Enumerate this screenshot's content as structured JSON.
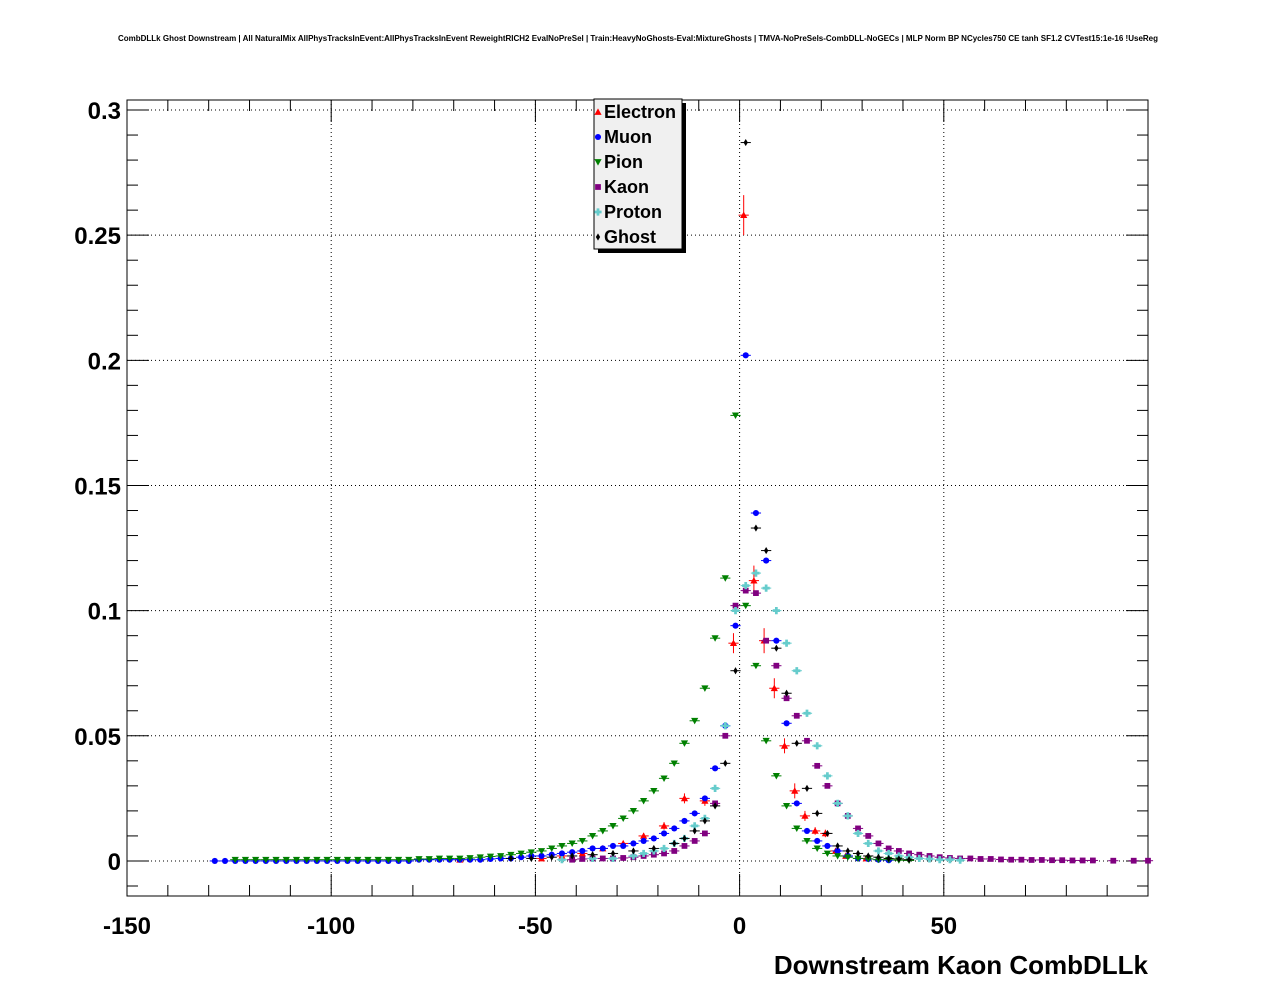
{
  "chart_data": {
    "type": "scatter",
    "title": "CombDLLk Ghost Downstream | All NaturalMix AllPhysTracksInEvent:AllPhysTracksInEvent ReweightRICH2 EvalNoPreSel | Train:HeavyNoGhosts-Eval:MixtureGhosts | TMVA-NoPreSels-CombDLL-NoGECs | MLP Norm BP NCycles750 CE tanh SF1.2 CVTest15:1e-16 !UseReg",
    "xlabel": "Downstream Kaon CombDLLk",
    "ylabel": "",
    "xlim": [
      -150,
      100
    ],
    "ylim": [
      -0.014,
      0.304
    ],
    "xticks": [
      -150,
      -100,
      -50,
      0,
      50
    ],
    "yticks": [
      0,
      0.05,
      0.1,
      0.15,
      0.2,
      0.25,
      0.3
    ],
    "xtick_labels": [
      "-150",
      "-100",
      "-50",
      "0",
      "50"
    ],
    "ytick_labels": [
      "0",
      "0.05",
      "0.1",
      "0.15",
      "0.2",
      "0.25",
      "0.3"
    ],
    "grid": true,
    "legend_position": "top-center",
    "series": [
      {
        "name": "Electron",
        "color": "#ff0000",
        "marker": "triangle-up",
        "x": [
          -68.5,
          -48.5,
          -43.5,
          -38.5,
          -33.5,
          -28.5,
          -23.5,
          -18.5,
          -13.5,
          -8.5,
          -1.5,
          1.0,
          3.5,
          6.0,
          8.5,
          11.0,
          13.5,
          16.0,
          18.5,
          21.0,
          23.5,
          26.0,
          31.0
        ],
        "y": [
          0.0005,
          0.001,
          0.002,
          0.003,
          0.005,
          0.007,
          0.01,
          0.014,
          0.025,
          0.024,
          0.087,
          0.258,
          0.112,
          0.088,
          0.069,
          0.046,
          0.028,
          0.018,
          0.012,
          0.011,
          0.004,
          0.002,
          0.001
        ],
        "yerr": [
          0.0005,
          0.0005,
          0.0005,
          0.0008,
          0.001,
          0.001,
          0.0012,
          0.0015,
          0.002,
          0.002,
          0.004,
          0.008,
          0.006,
          0.005,
          0.004,
          0.003,
          0.003,
          0.002,
          0.0015,
          0.0015,
          0.001,
          0.0008,
          0.0005
        ]
      },
      {
        "name": "Muon",
        "color": "#0000ff",
        "marker": "circle",
        "x": [
          -128.5,
          -126,
          -123.5,
          -121,
          -118.5,
          -116,
          -113.5,
          -111,
          -108.5,
          -106,
          -103.5,
          -101,
          -98.5,
          -96,
          -93.5,
          -91,
          -88.5,
          -86,
          -83.5,
          -81,
          -78.5,
          -76,
          -73.5,
          -71,
          -68.5,
          -66,
          -63.5,
          -61,
          -58.5,
          -56,
          -53.5,
          -51,
          -48.5,
          -46,
          -43.5,
          -41,
          -38.5,
          -36,
          -33.5,
          -31,
          -28.5,
          -26,
          -23.5,
          -21,
          -18.5,
          -16,
          -13.5,
          -11,
          -8.5,
          -6,
          -3.5,
          -1,
          1.5,
          4,
          6.5,
          9,
          11.5,
          14,
          16.5,
          19,
          21.5,
          24,
          26.5,
          29,
          31.5,
          34,
          36.5
        ],
        "y": [
          0,
          0,
          0,
          0,
          0,
          0,
          0,
          0,
          0,
          0,
          0,
          0,
          0,
          0,
          0,
          0,
          0,
          0,
          0,
          0,
          0.0005,
          0.0005,
          0.0005,
          0.0005,
          0.0005,
          0.0005,
          0.0005,
          0.0008,
          0.001,
          0.001,
          0.0015,
          0.002,
          0.002,
          0.0025,
          0.003,
          0.0035,
          0.004,
          0.005,
          0.005,
          0.006,
          0.006,
          0.007,
          0.008,
          0.009,
          0.011,
          0.013,
          0.016,
          0.019,
          0.025,
          0.037,
          0.054,
          0.094,
          0.202,
          0.139,
          0.12,
          0.088,
          0.055,
          0.023,
          0.012,
          0.008,
          0.006,
          0.004,
          0.002,
          0.001,
          0.0008,
          0.0005,
          0.0003
        ],
        "yerr": []
      },
      {
        "name": "Pion",
        "color": "#008000",
        "marker": "triangle-down",
        "x": [
          -123.5,
          -121,
          -118.5,
          -116,
          -113.5,
          -111,
          -108.5,
          -106,
          -103.5,
          -101,
          -98.5,
          -96,
          -93.5,
          -91,
          -88.5,
          -86,
          -83.5,
          -81,
          -78.5,
          -76,
          -73.5,
          -71,
          -68.5,
          -66,
          -63.5,
          -61,
          -58.5,
          -56,
          -53.5,
          -51,
          -48.5,
          -46,
          -43.5,
          -41,
          -38.5,
          -36,
          -33.5,
          -31,
          -28.5,
          -26,
          -23.5,
          -21,
          -18.5,
          -16,
          -13.5,
          -11,
          -8.5,
          -6,
          -3.5,
          -1,
          1.5,
          4,
          6.5,
          9,
          11.5,
          14,
          16.5,
          19,
          21.5,
          24,
          26.5,
          29,
          31.5,
          34,
          36.5,
          39,
          41.5
        ],
        "y": [
          0.0005,
          0.0005,
          0.0005,
          0.0005,
          0.0005,
          0.0005,
          0.0005,
          0.0005,
          0.0005,
          0.0005,
          0.0005,
          0.0005,
          0.0005,
          0.0005,
          0.0005,
          0.0005,
          0.0005,
          0.0005,
          0.0008,
          0.0008,
          0.001,
          0.001,
          0.001,
          0.0012,
          0.0015,
          0.0018,
          0.002,
          0.0025,
          0.003,
          0.0035,
          0.004,
          0.005,
          0.006,
          0.007,
          0.008,
          0.01,
          0.012,
          0.014,
          0.017,
          0.02,
          0.024,
          0.028,
          0.033,
          0.039,
          0.047,
          0.056,
          0.069,
          0.089,
          0.113,
          0.178,
          0.102,
          0.078,
          0.048,
          0.034,
          0.022,
          0.013,
          0.008,
          0.005,
          0.003,
          0.002,
          0.0015,
          0.001,
          0.0008,
          0.0005,
          0.0005,
          0.0003,
          0.0002
        ],
        "yerr": []
      },
      {
        "name": "Kaon",
        "color": "#800080",
        "marker": "square",
        "x": [
          -41,
          -38.5,
          -36,
          -33.5,
          -31,
          -28.5,
          -26,
          -23.5,
          -21,
          -18.5,
          -16,
          -13.5,
          -11,
          -8.5,
          -6,
          -3.5,
          -1,
          1.5,
          4,
          6.5,
          9,
          11.5,
          14,
          16.5,
          19,
          21.5,
          24,
          26.5,
          29,
          31.5,
          34,
          36.5,
          39,
          41.5,
          44,
          46.5,
          49,
          51.5,
          54,
          56.5,
          59,
          61.5,
          64,
          66.5,
          69,
          71.5,
          74,
          76.5,
          79,
          81.5,
          84,
          86.5,
          91.5,
          96.5,
          100
        ],
        "y": [
          0.0005,
          0.0008,
          0.001,
          0.001,
          0.001,
          0.0012,
          0.0015,
          0.002,
          0.0025,
          0.003,
          0.004,
          0.006,
          0.008,
          0.011,
          0.023,
          0.05,
          0.102,
          0.108,
          0.107,
          0.088,
          0.078,
          0.065,
          0.058,
          0.048,
          0.038,
          0.03,
          0.023,
          0.018,
          0.013,
          0.01,
          0.007,
          0.005,
          0.004,
          0.003,
          0.0025,
          0.002,
          0.0015,
          0.0012,
          0.001,
          0.001,
          0.0008,
          0.0008,
          0.0006,
          0.0005,
          0.0005,
          0.0004,
          0.0004,
          0.0003,
          0.0003,
          0.0002,
          0.0002,
          0.0002,
          0.0001,
          0.0001,
          0.0001
        ],
        "yerr": []
      },
      {
        "name": "Proton",
        "color": "#66cccc",
        "marker": "cross",
        "x": [
          -43.5,
          -36,
          -31,
          -26,
          -23.5,
          -21,
          -18.5,
          -16,
          -13.5,
          -11,
          -8.5,
          -6,
          -3.5,
          -1,
          1.5,
          4,
          6.5,
          9,
          11.5,
          14,
          16.5,
          19,
          21.5,
          24,
          26.5,
          29,
          31.5,
          34,
          36.5,
          39,
          41.5,
          44,
          46.5,
          49,
          51.5,
          54
        ],
        "y": [
          0.0005,
          0.001,
          0.001,
          0.002,
          0.003,
          0.004,
          0.005,
          0.007,
          0.009,
          0.014,
          0.017,
          0.029,
          0.054,
          0.1,
          0.11,
          0.115,
          0.109,
          0.1,
          0.087,
          0.076,
          0.059,
          0.046,
          0.034,
          0.023,
          0.018,
          0.011,
          0.007,
          0.004,
          0.003,
          0.002,
          0.0015,
          0.001,
          0.0008,
          0.0005,
          0.0005,
          0.0003
        ],
        "yerr": []
      },
      {
        "name": "Ghost",
        "color": "#000000",
        "marker": "diamond",
        "x": [
          -56,
          -51,
          -46,
          -41,
          -36,
          -31,
          -26,
          -21,
          -16,
          -13.5,
          -11,
          -8.5,
          -6,
          -3.5,
          -1,
          1.5,
          4,
          6.5,
          9,
          11.5,
          14,
          16.5,
          19,
          21.5,
          24,
          26.5,
          29,
          31.5,
          34,
          36.5,
          39,
          41.5
        ],
        "y": [
          0.001,
          0.001,
          0.0015,
          0.002,
          0.0025,
          0.003,
          0.004,
          0.005,
          0.007,
          0.009,
          0.012,
          0.016,
          0.022,
          0.039,
          0.076,
          0.287,
          0.133,
          0.124,
          0.085,
          0.067,
          0.047,
          0.029,
          0.019,
          0.011,
          0.006,
          0.004,
          0.003,
          0.002,
          0.0015,
          0.001,
          0.0008,
          0.0005
        ],
        "yerr": []
      }
    ]
  }
}
